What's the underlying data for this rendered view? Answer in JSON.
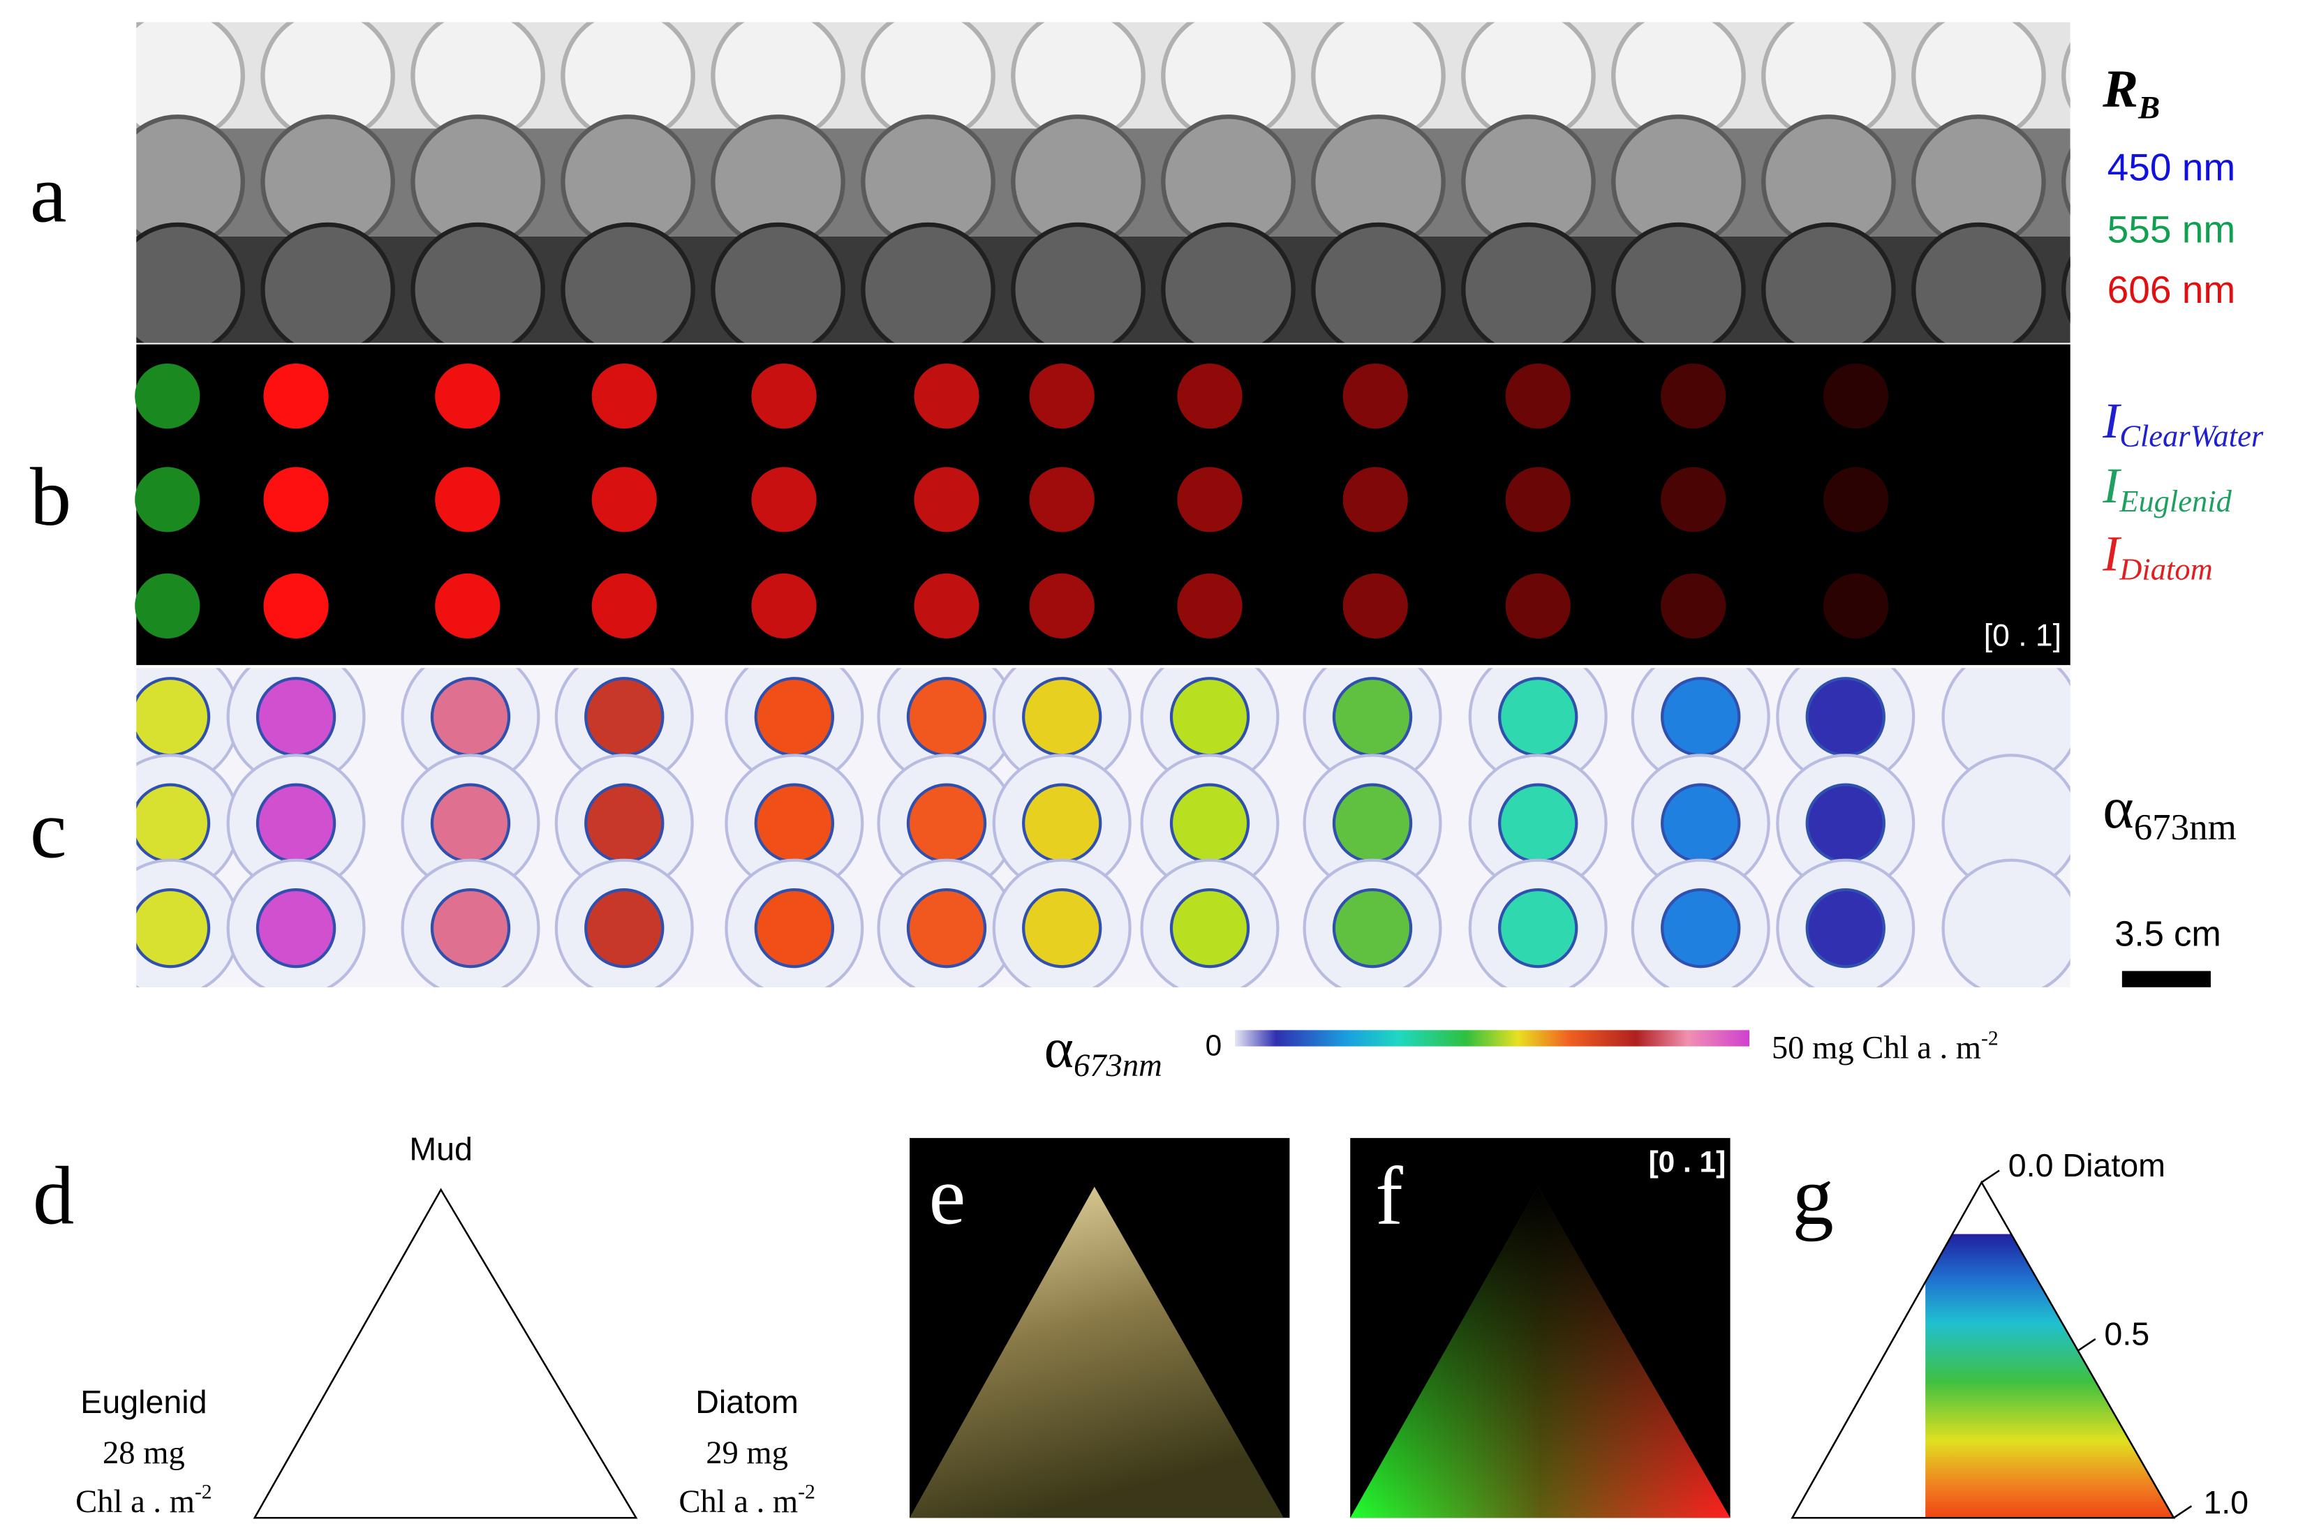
{
  "panels": {
    "a": {
      "label": "a",
      "title": {
        "symbol": "R",
        "subscript": "B"
      },
      "bands": [
        "450 nm",
        "555 nm",
        "606 nm"
      ]
    },
    "b": {
      "label": "b",
      "legend": [
        {
          "symbol": "I",
          "subscript": "ClearWater"
        },
        {
          "symbol": "I",
          "subscript": "Euglenid"
        },
        {
          "symbol": "I",
          "subscript": "Diatom"
        }
      ],
      "range": "[0 . 1]"
    },
    "c": {
      "label": "c",
      "title": {
        "symbol": "α",
        "subscript": "673nm"
      },
      "scale_bar": "3.5 cm",
      "colorbar": {
        "symbol": "α",
        "subscript": "673nm",
        "min": "0",
        "max": "50 mg Chl a . m",
        "max_superscript": "-2"
      }
    },
    "d": {
      "label": "d",
      "top": "Mud",
      "left": {
        "name": "Euglenid",
        "amount": "28 mg",
        "unit": "Chl a . m",
        "unit_superscript": "-2"
      },
      "right": {
        "name": "Diatom",
        "amount": "29 mg",
        "unit": "Chl a . m",
        "unit_superscript": "-2"
      }
    },
    "e": {
      "label": "e"
    },
    "f": {
      "label": "f",
      "range": "[0 . 1]"
    },
    "g": {
      "label": "g",
      "ticks": [
        "0.0 Diatom",
        "0.5",
        "1.0"
      ]
    }
  }
}
